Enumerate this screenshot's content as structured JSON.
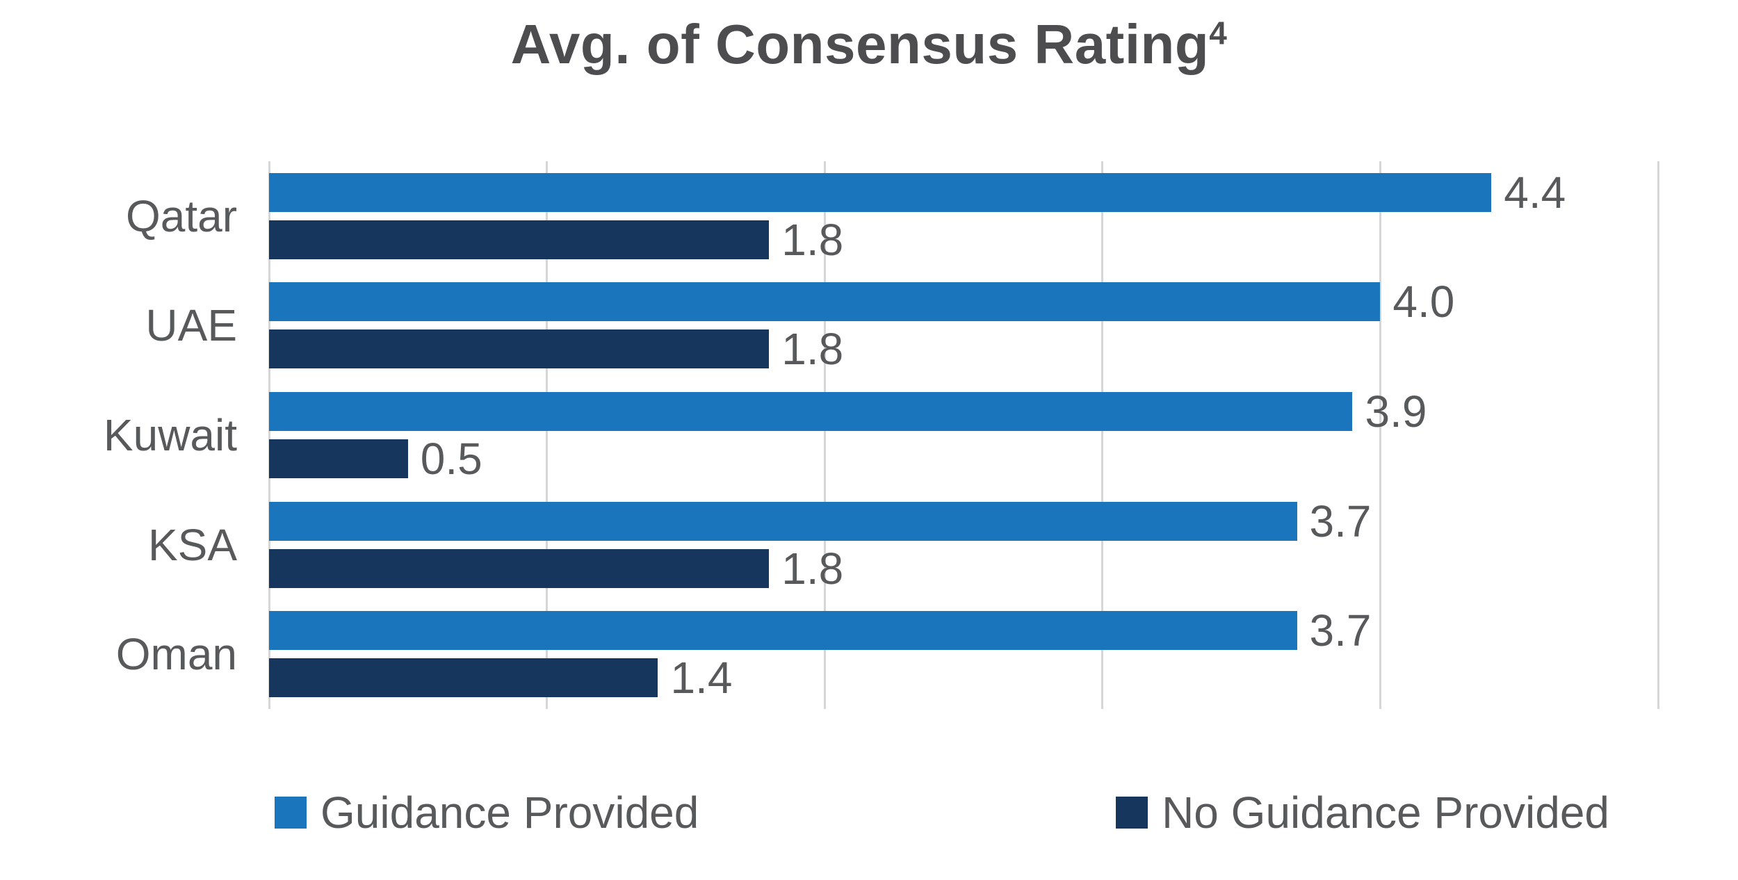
{
  "chart_data": {
    "type": "bar",
    "orientation": "horizontal",
    "title": "Avg. of Consensus Rating",
    "title_superscript": "4",
    "categories": [
      "Qatar",
      "UAE",
      "Kuwait",
      "KSA",
      "Oman"
    ],
    "series": [
      {
        "name": "Guidance Provided",
        "color": "#1b75bc",
        "values": [
          4.4,
          4.0,
          3.9,
          3.7,
          3.7
        ],
        "labels": [
          "4.4",
          "4.0",
          "3.9",
          "3.7",
          "3.7"
        ]
      },
      {
        "name": "No Guidance Provided",
        "color": "#17365d",
        "values": [
          1.8,
          1.8,
          0.5,
          1.8,
          1.4
        ],
        "labels": [
          "1.8",
          "1.8",
          "0.5",
          "1.8",
          "1.4"
        ]
      }
    ],
    "xlim": [
      0,
      5
    ],
    "gridline_step": 1,
    "grid": "vertical",
    "tick_labels_shown": false,
    "legend_position": "bottom"
  },
  "colors": {
    "guidance_provided": "#1b75bc",
    "no_guidance_provided": "#17365d",
    "text": "#58595b",
    "title_text": "#4d4d4f",
    "gridline": "#d6d6d6",
    "background": "#ffffff"
  },
  "legend": {
    "items": [
      {
        "label": "Guidance Provided",
        "color": "#1b75bc"
      },
      {
        "label": "No Guidance Provided",
        "color": "#17365d"
      }
    ]
  }
}
